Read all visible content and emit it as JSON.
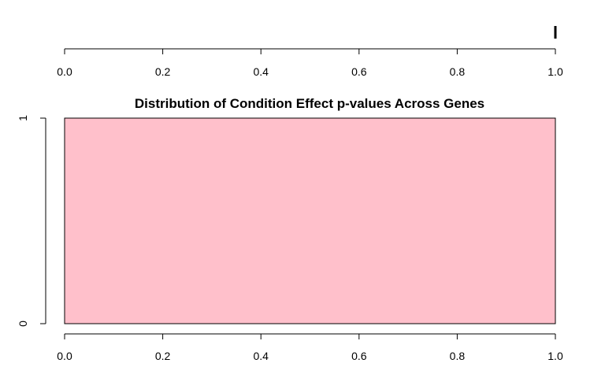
{
  "chart_data": [
    {
      "type": "boxplot",
      "title": "",
      "xlim": [
        0,
        1
      ],
      "x_ticks": [
        0.0,
        0.2,
        0.4,
        0.6,
        0.8,
        1.0
      ],
      "x_tick_labels": [
        "0.0",
        "0.2",
        "0.4",
        "0.6",
        "0.8",
        "1.0"
      ],
      "values": [
        1.0
      ],
      "median": 1.0,
      "q1": 1.0,
      "q3": 1.0
    },
    {
      "type": "histogram",
      "title": "Distribution of Condition Effect p-values Across Genes",
      "xlabel": "",
      "ylabel": "",
      "xlim": [
        0,
        1
      ],
      "ylim": [
        0,
        1
      ],
      "x_ticks": [
        0.0,
        0.2,
        0.4,
        0.6,
        0.8,
        1.0
      ],
      "x_tick_labels": [
        "0.0",
        "0.2",
        "0.4",
        "0.6",
        "0.8",
        "1.0"
      ],
      "y_ticks": [
        0,
        1
      ],
      "y_tick_labels": [
        "0",
        "1"
      ],
      "bins": [
        {
          "from": 0.0,
          "to": 1.0,
          "count": 1
        }
      ],
      "fill_color": "#ffc0cb",
      "border_color": "#000000"
    }
  ]
}
